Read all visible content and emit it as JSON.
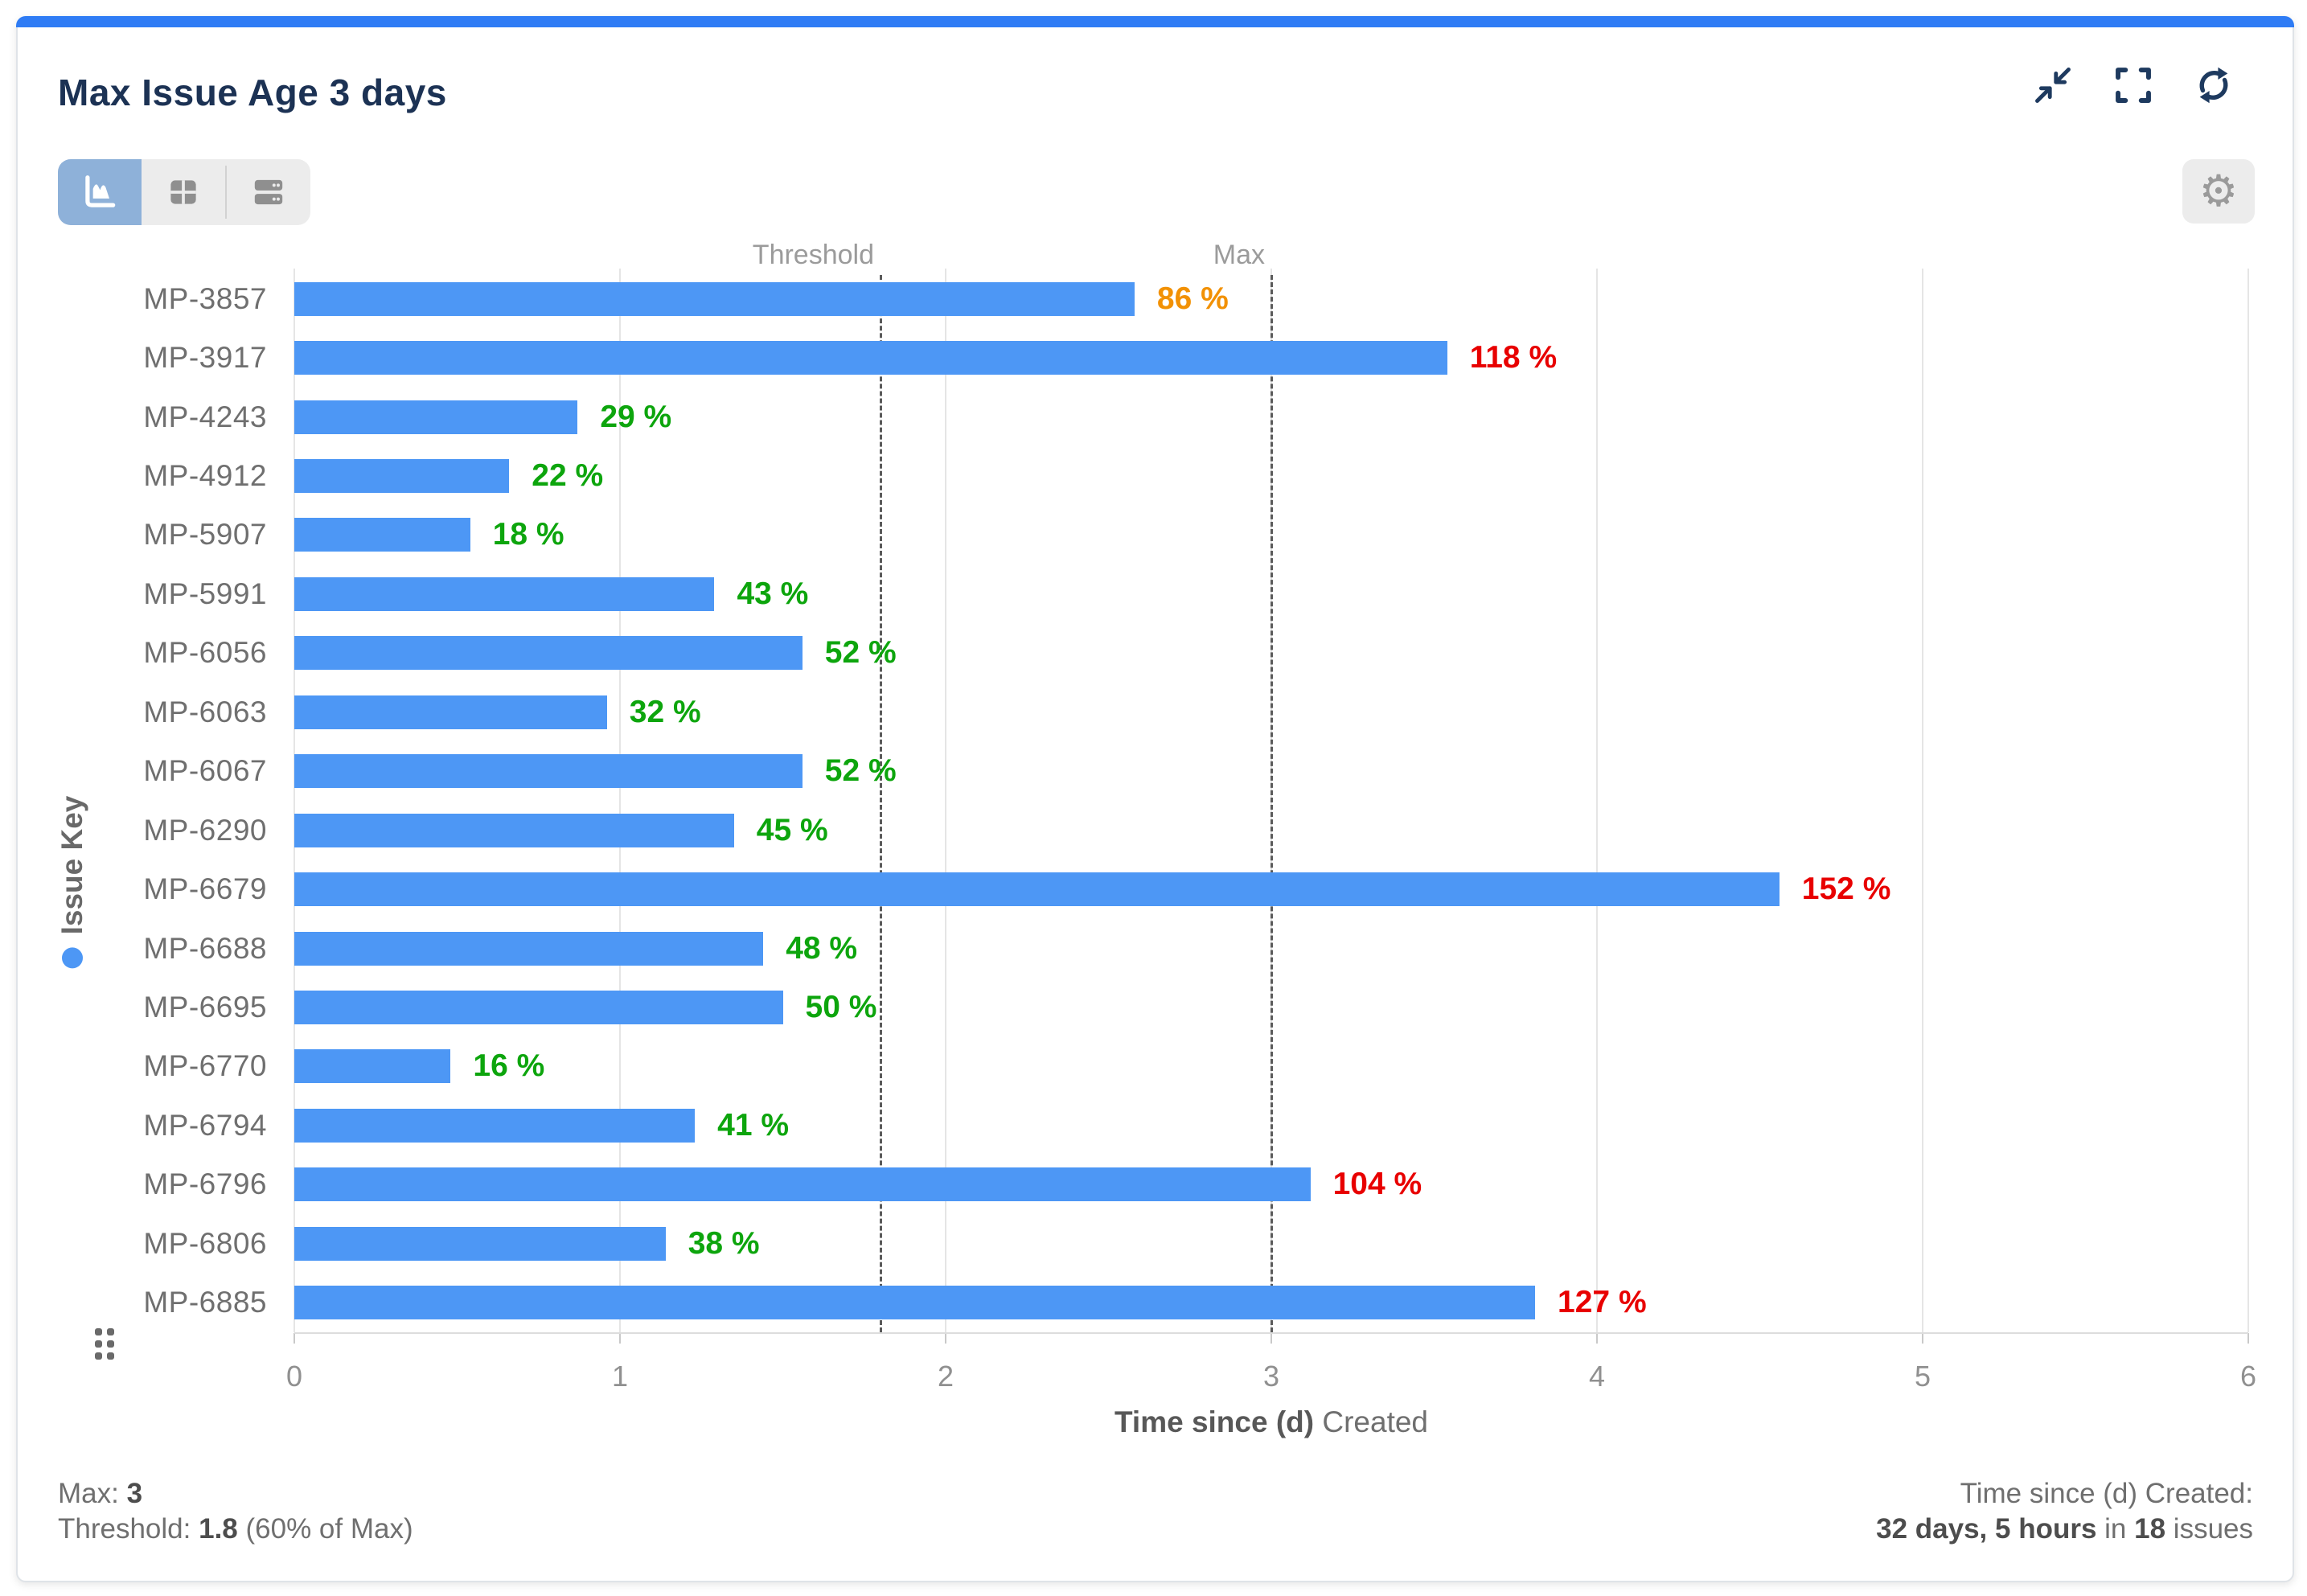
{
  "header": {
    "title": "Max Issue Age 3 days"
  },
  "icons": {
    "collapse": "collapse-arrows-icon",
    "fullscreen": "fullscreen-icon",
    "refresh": "refresh-icon",
    "settings": "gear-icon",
    "chart_view": "area-chart-icon",
    "table_view": "table-icon",
    "list_view": "records-icon",
    "drag": "drag-handle-icon",
    "legend": "series-dot"
  },
  "colors": {
    "accent": "#2f7cf5",
    "bar": "#4d97f5",
    "green": "#0da50d",
    "orange": "#f29104",
    "red": "#e80000",
    "navy": "#1c3254",
    "icon_navy": "#1e3a5f"
  },
  "chart_data": {
    "type": "bar",
    "orientation": "horizontal",
    "title": "Max Issue Age 3 days",
    "xlabel": "Time since (d) Created",
    "xlabel_bold": "Time since (d)",
    "xlabel_rest": " Created",
    "ylabel": "Issue Key",
    "xlim": [
      0,
      6
    ],
    "xticks": [
      0,
      1,
      2,
      3,
      4,
      5,
      6
    ],
    "grid": true,
    "legend_position": "left-axis",
    "categories": [
      "MP-3857",
      "MP-3917",
      "MP-4243",
      "MP-4912",
      "MP-5907",
      "MP-5991",
      "MP-6056",
      "MP-6063",
      "MP-6067",
      "MP-6290",
      "MP-6679",
      "MP-6688",
      "MP-6695",
      "MP-6770",
      "MP-6794",
      "MP-6796",
      "MP-6806",
      "MP-6885"
    ],
    "values": [
      2.58,
      3.54,
      0.87,
      0.66,
      0.54,
      1.29,
      1.56,
      0.96,
      1.56,
      1.35,
      4.56,
      1.44,
      1.5,
      0.48,
      1.23,
      3.12,
      1.14,
      3.81
    ],
    "percent_labels": [
      "86 %",
      "118 %",
      "29 %",
      "22 %",
      "18 %",
      "43 %",
      "52 %",
      "32 %",
      "52 %",
      "45 %",
      "152 %",
      "48 %",
      "50 %",
      "16 %",
      "41 %",
      "104 %",
      "38 %",
      "127 %"
    ],
    "percent_status": [
      "warn",
      "over",
      "ok",
      "ok",
      "ok",
      "ok",
      "ok",
      "ok",
      "ok",
      "ok",
      "over",
      "ok",
      "ok",
      "ok",
      "ok",
      "over",
      "ok",
      "over"
    ],
    "reference_lines": [
      {
        "label": "Threshold",
        "value": 1.8
      },
      {
        "label": "Max",
        "value": 3
      }
    ]
  },
  "footer": {
    "max_label": "Max:",
    "max_value": "3",
    "threshold_label": "Threshold:",
    "threshold_value": "1.8",
    "threshold_suffix": "(60% of Max)",
    "right_line1": "Time since (d) Created:",
    "right_bold1": "32 days, 5 hours",
    "right_mid": " in ",
    "right_bold2": "18",
    "right_end": " issues"
  }
}
